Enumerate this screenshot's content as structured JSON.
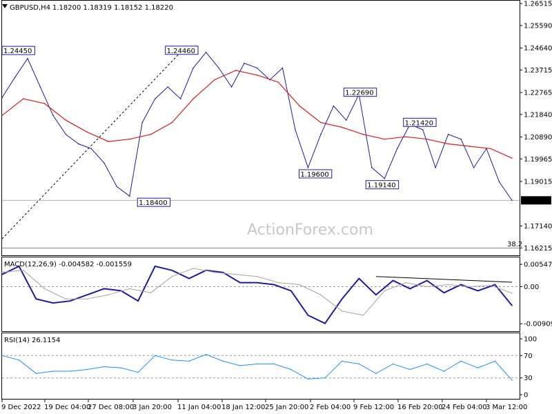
{
  "header": {
    "symbol": "GBPUSD,H4",
    "ohlc": "1.18200 1.18319 1.18152 1.18220",
    "icon": "triangle-down-icon"
  },
  "watermark": "ActionForex.com",
  "fib_label": "38.2",
  "chart_data": [
    {
      "type": "line",
      "panel": "price",
      "title": "GBPUSD,H4 1.18200 1.18319 1.18152 1.18220",
      "x_ticks": [
        "9 Dec 2022",
        "19 Dec 04:00",
        "27 Dec 08:00",
        "3 Jan 20:00",
        "11 Jan 04:00",
        "18 Jan 12:00",
        "25 Jan 20:00",
        "2 Feb 04:00",
        "9 Feb 12:00",
        "16 Feb 20:00",
        "24 Feb 04:00",
        "3 Mar 12:00"
      ],
      "y_ticks": [
        "1.26515",
        "1.25590",
        "1.24640",
        "1.23715",
        "1.22765",
        "1.21840",
        "1.20890",
        "1.19965",
        "1.19015",
        "1.17140",
        "1.16215"
      ],
      "ylim": [
        1.1602,
        1.2652
      ],
      "current_price": "1.18220",
      "series": [
        {
          "name": "",
          "color": "#1a1aa6",
          "x": [
            0,
            6,
            12,
            18,
            24,
            30,
            36,
            42,
            48,
            54,
            60,
            66,
            72,
            78,
            84,
            90,
            96,
            102,
            108,
            114,
            120,
            126,
            132,
            138,
            144,
            150,
            156,
            162,
            168,
            174,
            180,
            186,
            192,
            198,
            204,
            210,
            216,
            222,
            228,
            234,
            240
          ],
          "values": [
            1.2255,
            1.234,
            1.242,
            1.23,
            1.218,
            1.21,
            1.206,
            1.204,
            1.198,
            1.188,
            1.184,
            1.215,
            1.225,
            1.23,
            1.225,
            1.238,
            1.2446,
            1.238,
            1.23,
            1.24,
            1.238,
            1.233,
            1.238,
            1.212,
            1.196,
            1.21,
            1.222,
            1.216,
            1.2269,
            1.196,
            1.1914,
            1.204,
            1.2142,
            1.212,
            1.196,
            1.21,
            1.208,
            1.196,
            1.204,
            1.19,
            1.1822
          ]
        },
        {
          "name": "",
          "color": "#e31919",
          "x": [
            0,
            10,
            20,
            30,
            40,
            50,
            60,
            70,
            80,
            90,
            100,
            110,
            120,
            130,
            140,
            150,
            160,
            170,
            180,
            190,
            200,
            210,
            220,
            230,
            240
          ],
          "values": [
            1.218,
            1.225,
            1.223,
            1.216,
            1.211,
            1.207,
            1.208,
            1.21,
            1.215,
            1.225,
            1.233,
            1.237,
            1.235,
            1.232,
            1.222,
            1.215,
            1.213,
            1.21,
            1.208,
            1.209,
            1.208,
            1.206,
            1.205,
            1.204,
            1.2
          ]
        }
      ],
      "annotations": [
        "1.24450",
        "1.24460",
        "1.18400",
        "1.19600",
        "1.22690",
        "1.19140",
        "1.21420"
      ]
    },
    {
      "type": "line",
      "panel": "macd",
      "title": "MACD(12,26,9) -0.004582 -0.001559",
      "y_ticks": [
        "0.005475",
        "0.00",
        "-0.00909"
      ],
      "ylim": [
        -0.0099,
        0.006
      ],
      "series": [
        {
          "name": "",
          "color": "#1a1aa6",
          "x": [
            0,
            8,
            16,
            24,
            32,
            40,
            48,
            56,
            64,
            72,
            80,
            88,
            96,
            104,
            112,
            120,
            128,
            136,
            144,
            152,
            160,
            168,
            176,
            184,
            192,
            200,
            208,
            216,
            224,
            232,
            240
          ],
          "values": [
            0.003,
            0.005,
            -0.003,
            -0.004,
            -0.0035,
            -0.002,
            -0.0005,
            -0.001,
            -0.0035,
            0.005,
            0.004,
            0.002,
            0.004,
            0.0035,
            0.001,
            0.001,
            0.0005,
            -0.001,
            -0.007,
            -0.009,
            -0.003,
            0.002,
            -0.002,
            0.0015,
            -0.0005,
            0.0015,
            -0.0015,
            0.0005,
            -0.001,
            0.0005,
            -0.0046
          ]
        },
        {
          "name": "",
          "color": "#b0a0a0",
          "x": [
            0,
            10,
            20,
            30,
            40,
            50,
            60,
            70,
            80,
            90,
            100,
            110,
            120,
            130,
            140,
            150,
            160,
            170,
            180,
            190,
            200,
            210,
            220,
            230,
            240
          ],
          "values": [
            0.0035,
            0.004,
            -0.0005,
            -0.003,
            -0.003,
            -0.002,
            -0.0005,
            -0.0015,
            0.0025,
            0.0045,
            0.0035,
            0.003,
            0.0025,
            0.001,
            0.0005,
            -0.002,
            -0.006,
            -0.007,
            -0.001,
            0.001,
            0.0,
            0.0005,
            0.0,
            0.0003,
            -0.0016
          ]
        }
      ]
    },
    {
      "type": "line",
      "panel": "rsi",
      "title": "RSI(14) 26.1154",
      "y_ticks": [
        "100",
        "70",
        "30",
        "0"
      ],
      "ylim": [
        0,
        100
      ],
      "series": [
        {
          "name": "",
          "color": "#1e90ff",
          "x": [
            0,
            8,
            16,
            24,
            32,
            40,
            48,
            56,
            64,
            72,
            80,
            88,
            96,
            104,
            112,
            120,
            128,
            136,
            144,
            152,
            160,
            168,
            176,
            184,
            192,
            200,
            208,
            216,
            224,
            232,
            240
          ],
          "values": [
            70,
            62,
            38,
            42,
            42,
            45,
            50,
            48,
            40,
            70,
            62,
            60,
            72,
            60,
            52,
            55,
            55,
            45,
            28,
            30,
            60,
            55,
            38,
            55,
            45,
            55,
            42,
            60,
            48,
            60,
            26
          ]
        }
      ]
    }
  ]
}
